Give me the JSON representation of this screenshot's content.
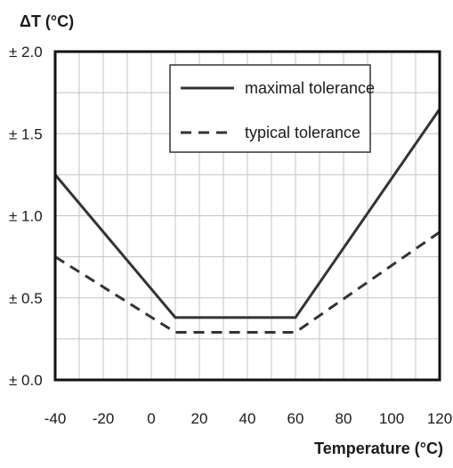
{
  "chart_data": {
    "type": "line",
    "ylabel": "ΔT (°C)",
    "xlabel": "Temperature (°C)",
    "xlim": [
      -40,
      120
    ],
    "ylim": [
      0,
      2.0
    ],
    "grid": true,
    "x_ticks": [
      -40,
      -20,
      0,
      20,
      40,
      60,
      80,
      100,
      120
    ],
    "x_tick_labels": [
      "-40",
      "-20",
      "0",
      "20",
      "40",
      "60",
      "80",
      "100",
      "120"
    ],
    "y_ticks": [
      0,
      0.5,
      1.0,
      1.5,
      2.0
    ],
    "y_tick_labels": [
      "± 0.0",
      "± 0.5",
      "± 1.0",
      "± 1.5",
      "± 2.0"
    ],
    "legend_position": "top-right",
    "series": [
      {
        "name": "maximal tolerance",
        "style": "solid",
        "color": "#333333",
        "x": [
          -40,
          10,
          60,
          120
        ],
        "y": [
          1.25,
          0.38,
          0.38,
          1.65
        ]
      },
      {
        "name": "typical tolerance",
        "style": "dashed",
        "color": "#333333",
        "x": [
          -40,
          10,
          60,
          120
        ],
        "y": [
          0.75,
          0.29,
          0.29,
          0.9
        ]
      }
    ]
  }
}
